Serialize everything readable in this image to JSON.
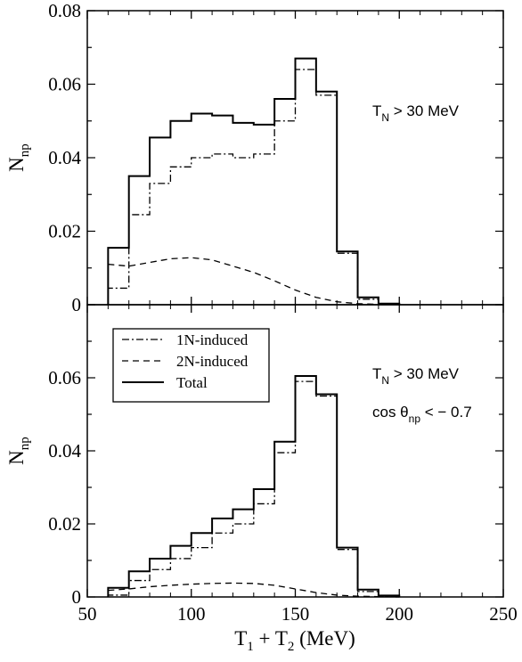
{
  "chart_data": [
    {
      "type": "step",
      "panel": "top",
      "ylabel_main": "N",
      "ylabel_sub": "np",
      "xlim": [
        50,
        250
      ],
      "ylim": [
        0,
        0.08
      ],
      "yticks": [
        0,
        0.02,
        0.04,
        0.06,
        0.08
      ],
      "ytick_labels": [
        "0",
        "0.02",
        "0.04",
        "0.06",
        "0.08"
      ],
      "bin_edges": [
        60,
        70,
        80,
        90,
        100,
        110,
        120,
        130,
        140,
        150,
        160,
        170,
        180,
        190,
        200
      ],
      "annotations": [
        {
          "parts": [
            "T",
            "N",
            " > 30 MeV"
          ]
        }
      ],
      "series": [
        {
          "style": "solid",
          "values": [
            0.0155,
            0.035,
            0.0455,
            0.05,
            0.052,
            0.0515,
            0.0495,
            0.049,
            0.056,
            0.067,
            0.058,
            0.0145,
            0.002,
            0.0003
          ]
        },
        {
          "style": "dashdot",
          "values": [
            0.0045,
            0.0245,
            0.033,
            0.0375,
            0.04,
            0.041,
            0.04,
            0.041,
            0.05,
            0.064,
            0.057,
            0.014,
            0.0015,
            0.0002
          ]
        },
        {
          "style": "dashed",
          "curve_x": [
            60,
            70,
            80,
            90,
            100,
            110,
            120,
            130,
            140,
            150,
            160,
            170,
            180,
            190,
            200
          ],
          "curve_y": [
            0.011,
            0.0105,
            0.0115,
            0.0125,
            0.0128,
            0.0122,
            0.0105,
            0.0088,
            0.0065,
            0.004,
            0.002,
            0.0008,
            0.0003,
            0.0001,
            0.0
          ]
        }
      ]
    },
    {
      "type": "step",
      "panel": "bottom",
      "xlabel_parts": [
        "T",
        "1",
        " + T",
        "2",
        " (MeV)"
      ],
      "ylabel_main": "N",
      "ylabel_sub": "np",
      "xlim": [
        50,
        250
      ],
      "ylim": [
        0,
        0.08
      ],
      "xticks": [
        50,
        100,
        150,
        200,
        250
      ],
      "xtick_labels": [
        "50",
        "100",
        "150",
        "200",
        "250"
      ],
      "yticks": [
        0,
        0.02,
        0.04,
        0.06
      ],
      "ytick_labels": [
        "0",
        "0.02",
        "0.04",
        "0.06"
      ],
      "bin_edges": [
        60,
        70,
        80,
        90,
        100,
        110,
        120,
        130,
        140,
        150,
        160,
        170,
        180,
        190,
        200
      ],
      "annotations": [
        {
          "parts": [
            "T",
            "N",
            " > 30 MeV"
          ]
        },
        {
          "parts": [
            "cos θ",
            "np",
            " < − 0.7"
          ]
        }
      ],
      "legend": {
        "position": "top-left",
        "entries": [
          {
            "label": "1N-induced",
            "style": "dashdot"
          },
          {
            "label": "2N-induced",
            "style": "dashed"
          },
          {
            "label": "Total",
            "style": "solid"
          }
        ]
      },
      "series": [
        {
          "name": "Total",
          "style": "solid",
          "values": [
            0.0025,
            0.007,
            0.0105,
            0.014,
            0.0175,
            0.0215,
            0.024,
            0.0295,
            0.0425,
            0.0605,
            0.0555,
            0.0135,
            0.002,
            0.0004
          ]
        },
        {
          "name": "1N-induced",
          "style": "dashdot",
          "values": [
            0.0005,
            0.0045,
            0.0075,
            0.0105,
            0.0135,
            0.0175,
            0.02,
            0.0255,
            0.0395,
            0.059,
            0.055,
            0.013,
            0.0015,
            0.0003
          ]
        },
        {
          "name": "2N-induced",
          "style": "dashed",
          "curve_x": [
            60,
            70,
            80,
            90,
            100,
            110,
            120,
            130,
            140,
            150,
            160,
            170,
            180,
            190,
            200
          ],
          "curve_y": [
            0.0018,
            0.0022,
            0.0028,
            0.0032,
            0.0035,
            0.0037,
            0.0038,
            0.0037,
            0.0032,
            0.0022,
            0.0012,
            0.0005,
            0.0002,
            0.0001,
            0.0
          ]
        }
      ]
    }
  ]
}
